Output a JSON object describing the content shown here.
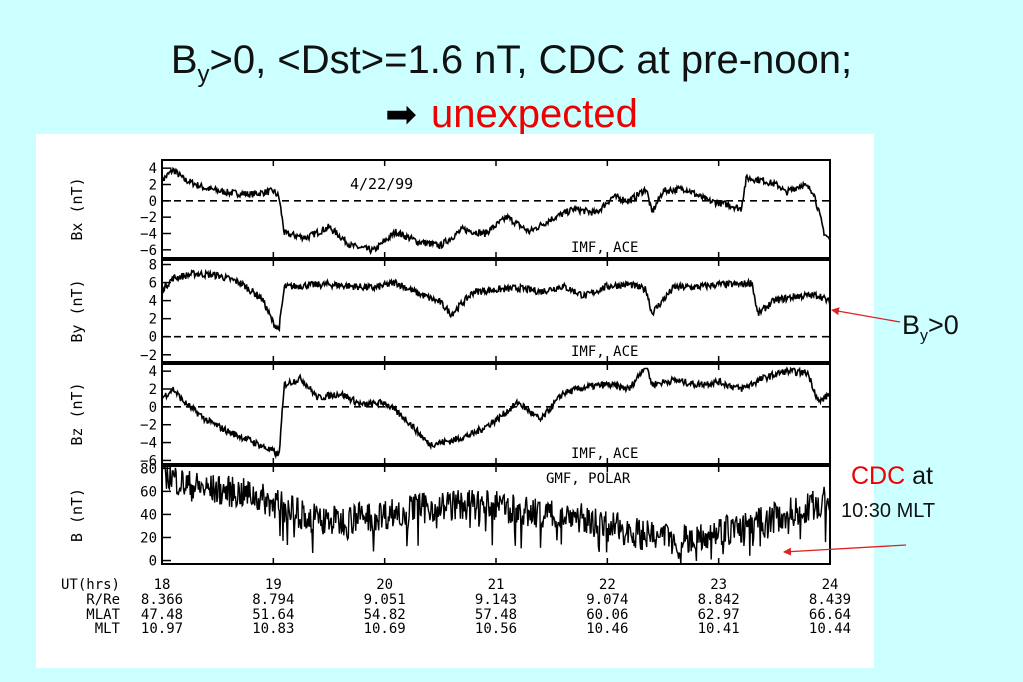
{
  "slide": {
    "title_line1_main": "B",
    "title_line1_sub": "y",
    "title_line1_rest": ">0, <Dst>=1.6 nT, CDC at pre-noon;",
    "title_line2_arrow": "➡",
    "title_line2_text": "unexpected",
    "by_label_main": "B",
    "by_label_sub": "y",
    "by_label_rest": ">0",
    "cdc_label_red": "CDC",
    "cdc_label_rest": " at",
    "cdc_label_line2": "10:30 MLT",
    "colors": {
      "background": "#ccffff",
      "accent": "#ee0000",
      "annotation_arrow": "#dd2222",
      "plot_bg": "#ffffff",
      "trace": "#000000"
    }
  },
  "chart_data": {
    "type": "line",
    "date_annotation": "4/22/99",
    "x_label": "UT(hrs)",
    "xlim": [
      18,
      24
    ],
    "x_ticks": [
      18,
      19,
      20,
      21,
      22,
      23,
      24
    ],
    "panels": [
      {
        "name": "Bx",
        "ylabel": "Bx (nT)",
        "annotation": "IMF, ACE",
        "ylim": [
          -7,
          5
        ],
        "y_ticks": [
          4,
          2,
          0,
          -2,
          -4,
          -6
        ],
        "y_tick_labels": [
          "4",
          "2",
          "0",
          "-2",
          "-4",
          "-6"
        ],
        "zero_line_dashed": true,
        "x": [
          18,
          18.1,
          18.2,
          18.4,
          18.6,
          18.8,
          19.0,
          19.05,
          19.1,
          19.3,
          19.5,
          19.7,
          19.9,
          20.1,
          20.3,
          20.5,
          20.7,
          20.9,
          21.1,
          21.3,
          21.5,
          21.7,
          21.9,
          22.05,
          22.2,
          22.35,
          22.4,
          22.5,
          22.7,
          22.9,
          23.1,
          23.2,
          23.25,
          23.4,
          23.55,
          23.6,
          23.75,
          23.85,
          23.95,
          24
        ],
        "values": [
          2.5,
          3.8,
          2.6,
          1.5,
          1.0,
          0.8,
          1.2,
          0.5,
          -4.0,
          -4.5,
          -3.2,
          -5.5,
          -6.1,
          -3.8,
          -5.0,
          -5.5,
          -3.5,
          -4.0,
          -2.0,
          -3.8,
          -2.2,
          -1.0,
          -1.5,
          0.5,
          0.0,
          1.5,
          -1.5,
          1.2,
          1.5,
          0.0,
          -0.5,
          -1.0,
          2.8,
          2.5,
          1.8,
          1.0,
          2.0,
          1.2,
          -4.0,
          -4.8
        ]
      },
      {
        "name": "By",
        "ylabel": "By (nT)",
        "annotation": "IMF, ACE",
        "ylim": [
          -2.8,
          8.5
        ],
        "y_ticks": [
          8,
          6,
          4,
          2,
          0,
          -2
        ],
        "y_tick_labels": [
          "8",
          "6",
          "4",
          "2",
          "0",
          "-2"
        ],
        "zero_line_dashed": true,
        "x": [
          18,
          18.1,
          18.3,
          18.5,
          18.7,
          18.9,
          19.0,
          19.05,
          19.1,
          19.3,
          19.5,
          19.7,
          19.9,
          20.1,
          20.3,
          20.5,
          20.6,
          20.8,
          21.0,
          21.2,
          21.4,
          21.6,
          21.8,
          22.0,
          22.2,
          22.35,
          22.4,
          22.6,
          22.8,
          23.0,
          23.2,
          23.3,
          23.35,
          23.5,
          23.7,
          23.9,
          24
        ],
        "values": [
          5.2,
          6.5,
          7.0,
          6.8,
          6.0,
          4.2,
          1.5,
          0.8,
          5.5,
          5.7,
          5.8,
          5.6,
          5.4,
          6.0,
          4.8,
          3.8,
          2.5,
          5.0,
          5.2,
          5.4,
          5.0,
          5.6,
          4.5,
          5.6,
          5.8,
          5.2,
          2.6,
          5.5,
          5.5,
          5.8,
          5.8,
          6.0,
          2.5,
          4.0,
          4.5,
          4.6,
          3.8
        ]
      },
      {
        "name": "Bz",
        "ylabel": "Bz (nT)",
        "annotation": "IMF, ACE",
        "ylim": [
          -6.4,
          4.8
        ],
        "y_ticks": [
          4,
          2,
          0,
          -2,
          -4,
          -6
        ],
        "y_tick_labels": [
          "4",
          "2",
          "0",
          "-2",
          "-4",
          "-6"
        ],
        "zero_line_dashed": true,
        "x": [
          18,
          18.1,
          18.2,
          18.4,
          18.6,
          18.8,
          19.0,
          19.05,
          19.1,
          19.25,
          19.4,
          19.6,
          19.8,
          20.0,
          20.2,
          20.4,
          20.6,
          20.8,
          21.0,
          21.2,
          21.4,
          21.6,
          21.8,
          22.0,
          22.2,
          22.35,
          22.4,
          22.6,
          22.8,
          23.0,
          23.2,
          23.4,
          23.6,
          23.8,
          23.9,
          24
        ],
        "values": [
          1.0,
          2.0,
          0.5,
          -1.5,
          -2.8,
          -3.8,
          -5.0,
          -5.5,
          2.5,
          3.2,
          1.0,
          1.5,
          0.2,
          0.5,
          -1.5,
          -4.2,
          -3.8,
          -3.0,
          -1.5,
          0.5,
          -1.5,
          1.5,
          2.2,
          2.5,
          2.0,
          4.8,
          2.5,
          3.0,
          2.5,
          2.8,
          2.0,
          3.2,
          4.0,
          3.8,
          0.5,
          1.5
        ]
      },
      {
        "name": "B",
        "ylabel": "B (nT)",
        "annotation": "GMF, POLAR",
        "ylim": [
          -3,
          82
        ],
        "y_ticks": [
          80,
          60,
          40,
          20,
          0
        ],
        "y_tick_labels": [
          "80",
          "60",
          "40",
          "20",
          "0"
        ],
        "zero_line_dashed": false,
        "x": [
          18,
          18.1,
          18.2,
          18.4,
          18.6,
          18.8,
          19.0,
          19.2,
          19.4,
          19.6,
          19.8,
          20.0,
          20.2,
          20.4,
          20.6,
          20.8,
          21.0,
          21.2,
          21.4,
          21.6,
          21.8,
          22.0,
          22.2,
          22.4,
          22.6,
          22.8,
          23.0,
          23.2,
          23.4,
          23.6,
          23.8,
          24
        ],
        "values": [
          78,
          72,
          66,
          62,
          60,
          57,
          50,
          42,
          36,
          34,
          38,
          40,
          44,
          46,
          48,
          48,
          47,
          44,
          40,
          42,
          36,
          30,
          26,
          20,
          18,
          22,
          26,
          28,
          34,
          40,
          46,
          52
        ]
      }
    ],
    "orbit_table": {
      "rows": [
        {
          "label": "UT(hrs)",
          "values": [
            "18",
            "19",
            "20",
            "21",
            "22",
            "23",
            "24"
          ]
        },
        {
          "label": "R/Re",
          "values": [
            "8.366",
            "8.794",
            "9.051",
            "9.143",
            "9.074",
            "8.842",
            "8.439"
          ]
        },
        {
          "label": "MLAT",
          "values": [
            "47.48",
            "51.64",
            "54.82",
            "57.48",
            "60.06",
            "62.97",
            "66.64"
          ]
        },
        {
          "label": "MLT",
          "values": [
            "10.97",
            "10.83",
            "10.69",
            "10.56",
            "10.46",
            "10.41",
            "10.44"
          ]
        }
      ]
    }
  }
}
